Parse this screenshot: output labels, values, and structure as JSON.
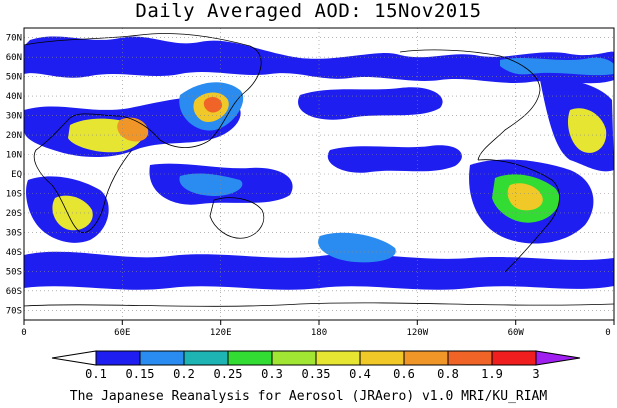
{
  "title": "Daily Averaged AOD: 15Nov2015",
  "footer": "The Japanese Reanalysis for Aerosol (JRAero) v1.0 MRI/KU_RIAM",
  "map": {
    "projection": "cylindrical equidistant",
    "lon_range": [
      0,
      360
    ],
    "lat_range": [
      -75,
      75
    ],
    "lat_labels": [
      "70N",
      "60N",
      "50N",
      "40N",
      "30N",
      "20N",
      "10N",
      "EQ",
      "10S",
      "20S",
      "30S",
      "40S",
      "50S",
      "60S",
      "70S"
    ],
    "lon_labels": [
      "0",
      "60E",
      "120E",
      "180",
      "120W",
      "60W",
      "0"
    ],
    "gridlines": "dotted"
  },
  "colorbar": {
    "levels": [
      "0.1",
      "0.15",
      "0.2",
      "0.25",
      "0.3",
      "0.35",
      "0.4",
      "0.6",
      "0.8",
      "1.9",
      "3"
    ],
    "colors": [
      "#ffffff",
      "#1e1ef0",
      "#2a8cf0",
      "#1eb4b4",
      "#32dc32",
      "#a0e632",
      "#e6e632",
      "#f0c828",
      "#f09628",
      "#f06428",
      "#f01e1e",
      "#a020f0"
    ]
  }
}
